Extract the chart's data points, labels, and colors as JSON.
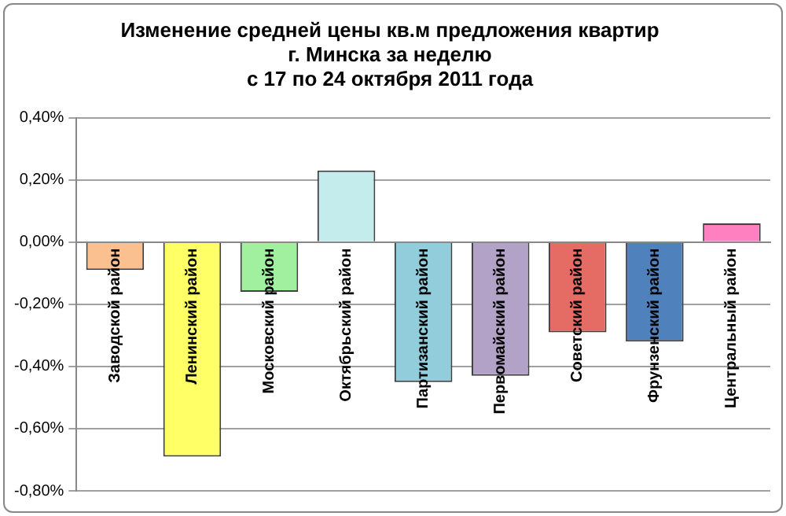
{
  "chart_data": {
    "type": "bar",
    "title": [
      "Изменение средней цены кв.м предложения квартир",
      "г. Минска за неделю",
      "с 17 по 24 октября 2011 года"
    ],
    "categories": [
      "Заводской район",
      "Ленинский район",
      "Московский район",
      "Октябрьский район",
      "Партизанский район",
      "Первомайский район",
      "Советский район",
      "Фрунзенский район",
      "Центральный район"
    ],
    "values": [
      -0.09,
      -0.69,
      -0.16,
      0.23,
      -0.45,
      -0.43,
      -0.29,
      -0.32,
      0.06
    ],
    "colors": [
      "#fac090",
      "#ffff66",
      "#a0f0a0",
      "#c4ecec",
      "#92cddc",
      "#b3a2c7",
      "#e46c64",
      "#4f81bd",
      "#ff80c0"
    ],
    "ylim": [
      -0.8,
      0.4
    ],
    "yticks": [
      {
        "value": 0.4,
        "label": "0,40%"
      },
      {
        "value": 0.2,
        "label": "0,20%"
      },
      {
        "value": 0,
        "label": "0,00%"
      },
      {
        "value": -0.2,
        "label": "-0,20%"
      },
      {
        "value": -0.4,
        "label": "-0,40%"
      },
      {
        "value": -0.6,
        "label": "-0,60%"
      },
      {
        "value": -0.8,
        "label": "-0,80%"
      }
    ],
    "grid": "y",
    "legend": false
  }
}
